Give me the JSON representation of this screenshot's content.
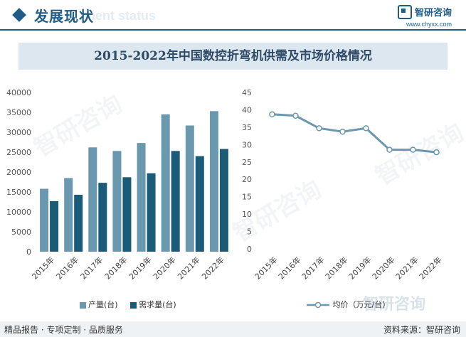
{
  "header": {
    "section_title": "发展现状",
    "section_title_en": "ment status",
    "brand_name": "智研咨询",
    "brand_url": "www.chyxx.com"
  },
  "title": "2015-2022年中国数控折弯机供需及市场价格情况",
  "footer": {
    "left": "精品报告 · 专项定制 · 品质服务",
    "right": "资料来源：智研咨询"
  },
  "watermark": "智研咨询",
  "colors": {
    "supply": "#6a98ae",
    "demand": "#1a5c78",
    "price": "#6a98ae",
    "accent": "#1f5d86"
  },
  "chart_data": [
    {
      "type": "bar",
      "categories": [
        "2015年",
        "2016年",
        "2017年",
        "2018年",
        "2019年",
        "2020年",
        "2021年",
        "2022年"
      ],
      "series": [
        {
          "name": "产量(台)",
          "values": [
            15800,
            18500,
            26200,
            25300,
            27300,
            34500,
            31700,
            35300
          ]
        },
        {
          "name": "需求量(台)",
          "values": [
            12700,
            14300,
            17300,
            18700,
            19700,
            25300,
            24000,
            25800
          ]
        }
      ],
      "ylim": [
        0,
        40000
      ],
      "yticks": [
        0,
        5000,
        10000,
        15000,
        20000,
        25000,
        30000,
        35000,
        40000
      ],
      "legend": "bottom"
    },
    {
      "type": "line",
      "categories": [
        "2015年",
        "2016年",
        "2017年",
        "2018年",
        "2019年",
        "2020年",
        "2021年",
        "2022年"
      ],
      "series": [
        {
          "name": "均价（万元/台）",
          "values": [
            38.7,
            38.3,
            34.7,
            33.7,
            34.7,
            28.5,
            28.5,
            27.8
          ]
        }
      ],
      "ylim": [
        0,
        45
      ],
      "yticks": [
        0,
        5,
        10,
        15,
        20,
        25,
        30,
        35,
        40,
        45
      ],
      "legend": "bottom"
    }
  ]
}
